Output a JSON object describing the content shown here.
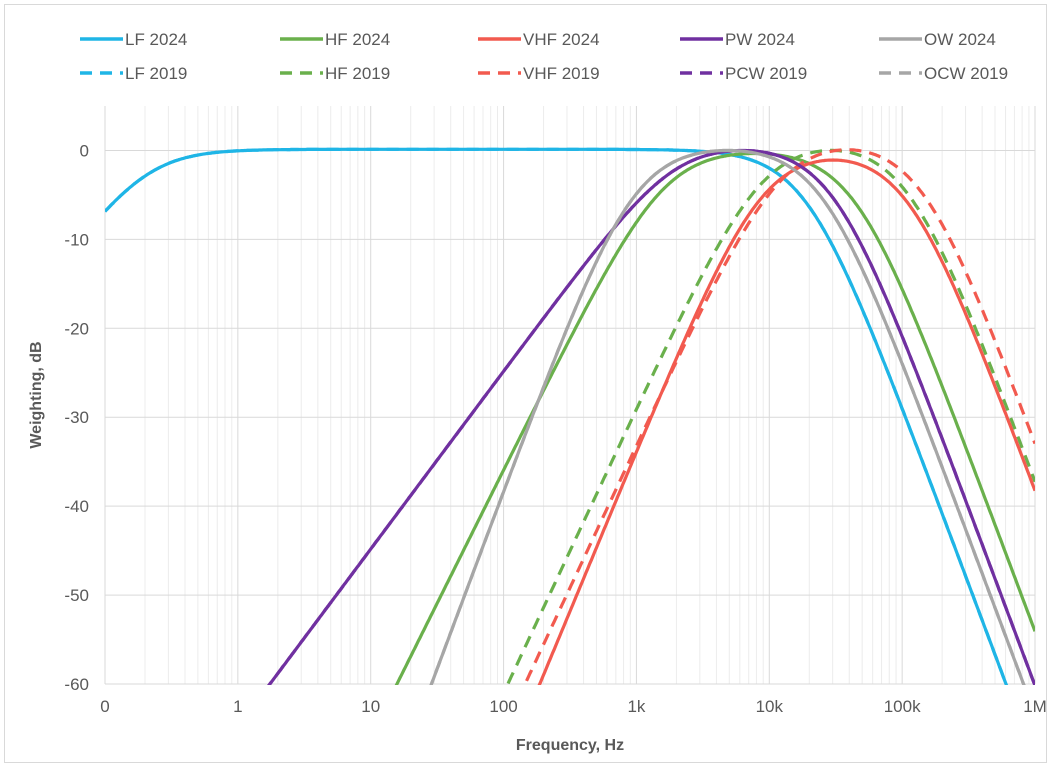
{
  "chart_data": {
    "type": "line",
    "xlabel": "Frequency, Hz",
    "ylabel": "Weighting, dB",
    "x_scale": "log",
    "xlim": [
      0.1,
      1000000
    ],
    "ylim": [
      -60,
      5
    ],
    "x_ticks": [
      {
        "v": 0.1,
        "label": "0"
      },
      {
        "v": 1,
        "label": "1"
      },
      {
        "v": 10,
        "label": "10"
      },
      {
        "v": 100,
        "label": "100"
      },
      {
        "v": 1000,
        "label": "1k"
      },
      {
        "v": 10000,
        "label": "10k"
      },
      {
        "v": 100000,
        "label": "100k"
      },
      {
        "v": 1000000,
        "label": "1M"
      }
    ],
    "y_ticks": [
      0,
      -10,
      -20,
      -30,
      -40,
      -50,
      -60
    ],
    "grid": true,
    "legend_position": "top",
    "series": [
      {
        "name": "LF 2024",
        "color": "#1fb5e6",
        "dash": false,
        "a": 1,
        "b": 2,
        "f1": 0.2,
        "f2": 19000,
        "K": 0.13
      },
      {
        "name": "HF 2024",
        "color": "#6ab04c",
        "dash": false,
        "a": 1.5,
        "b": 2,
        "f1": 1600,
        "f2": 44000,
        "K": 0.2
      },
      {
        "name": "VHF 2024",
        "color": "#f25a4f",
        "dash": false,
        "a": 1.8,
        "b": 2,
        "f1": 8800,
        "f2": 110000,
        "K": 0.19
      },
      {
        "name": "PW 2024",
        "color": "#7030a0",
        "dash": false,
        "a": 1,
        "b": 2,
        "f1": 1900,
        "f2": 30000,
        "K": 0.75
      },
      {
        "name": "OW 2024",
        "color": "#a6a6a6",
        "dash": false,
        "a": 2,
        "b": 2,
        "f1": 940,
        "f2": 25000,
        "K": 0.64
      },
      {
        "name": "LF 2019",
        "color": "#1fb5e6",
        "dash": true,
        "a": 1,
        "b": 2,
        "f1": 0.2,
        "f2": 19000,
        "K": 0.13
      },
      {
        "name": "HF 2019",
        "color": "#6ab04c",
        "dash": true,
        "a": 1.6,
        "b": 2,
        "f1": 8800,
        "f2": 110000,
        "K": 1.2
      },
      {
        "name": "VHF 2019",
        "color": "#f25a4f",
        "dash": true,
        "a": 1.6,
        "b": 2,
        "f1": 12000,
        "f2": 140000,
        "K": 1.36
      },
      {
        "name": "PCW 2019",
        "color": "#7030a0",
        "dash": true,
        "a": 1,
        "b": 2,
        "f1": 1900,
        "f2": 30000,
        "K": 0.75
      },
      {
        "name": "OCW 2019",
        "color": "#a6a6a6",
        "dash": true,
        "a": 2,
        "b": 2,
        "f1": 940,
        "f2": 25000,
        "K": 0.64
      }
    ]
  }
}
